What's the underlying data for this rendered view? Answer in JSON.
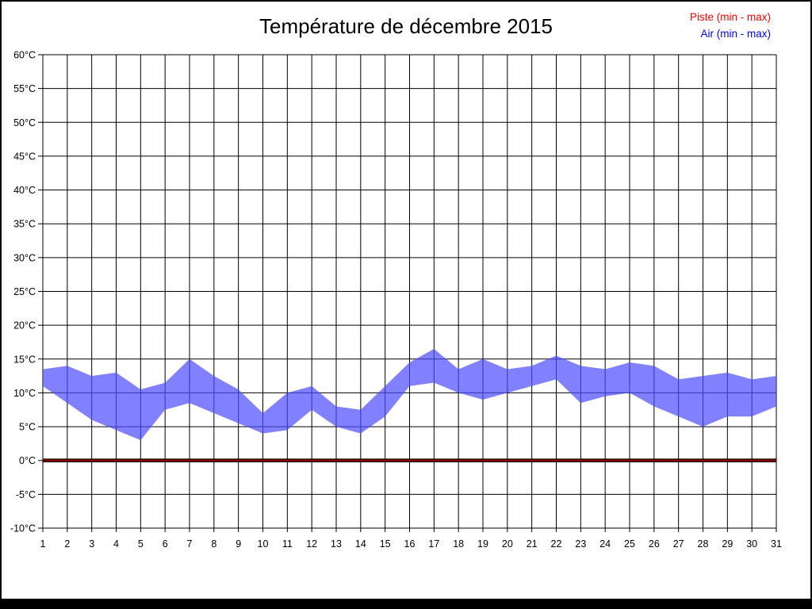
{
  "title": "Température de décembre 2015",
  "legend": [
    {
      "label": "Piste (min - max)",
      "color": "#ff0000"
    },
    {
      "label": "Air (min - max)",
      "color": "#0000ff"
    }
  ],
  "chart_data": {
    "type": "area",
    "subtype": "min-max-band",
    "title": "Température de décembre 2015",
    "xlabel": "",
    "ylabel": "",
    "x": [
      1,
      2,
      3,
      4,
      5,
      6,
      7,
      8,
      9,
      10,
      11,
      12,
      13,
      14,
      15,
      16,
      17,
      18,
      19,
      20,
      21,
      22,
      23,
      24,
      25,
      26,
      27,
      28,
      29,
      30,
      31
    ],
    "xtick_labels": [
      "1",
      "2",
      "3",
      "4",
      "5",
      "6",
      "7",
      "8",
      "9",
      "10",
      "11",
      "12",
      "13",
      "14",
      "15",
      "16",
      "17",
      "18",
      "19",
      "20",
      "21",
      "22",
      "23",
      "24",
      "25",
      "26",
      "27",
      "28",
      "29",
      "30",
      "31"
    ],
    "ylim": [
      -10,
      60
    ],
    "ytick_step": 5,
    "ytick_values": [
      -10,
      -5,
      0,
      5,
      10,
      15,
      20,
      25,
      30,
      35,
      40,
      45,
      50,
      55,
      60
    ],
    "ytick_suffix": "°C",
    "grid": true,
    "grid_color": "#000000",
    "legend_position": "top-right",
    "series": [
      {
        "name": "Piste (min - max)",
        "legend_color": "#ff0000",
        "line_color": "#8b0000",
        "min": [
          0,
          0,
          0,
          0,
          0,
          0,
          0,
          0,
          0,
          0,
          0,
          0,
          0,
          0,
          0,
          0,
          0,
          0,
          0,
          0,
          0,
          0,
          0,
          0,
          0,
          0,
          0,
          0,
          0,
          0,
          0
        ],
        "max": [
          0,
          0,
          0,
          0,
          0,
          0,
          0,
          0,
          0,
          0,
          0,
          0,
          0,
          0,
          0,
          0,
          0,
          0,
          0,
          0,
          0,
          0,
          0,
          0,
          0,
          0,
          0,
          0,
          0,
          0,
          0
        ]
      },
      {
        "name": "Air (min - max)",
        "legend_color": "#0000ff",
        "band_color": "rgba(75,75,255,0.70)",
        "min": [
          11,
          8.5,
          6,
          4.5,
          3,
          7.5,
          8.5,
          7,
          5.5,
          4,
          4.5,
          7.5,
          5,
          4,
          6.5,
          11,
          11.5,
          10,
          9,
          10,
          11,
          12,
          8.5,
          9.5,
          10,
          8,
          6.5,
          5,
          6.5,
          6.5,
          8
        ],
        "max": [
          13.5,
          14,
          12.5,
          13,
          10.5,
          11.5,
          15,
          12.5,
          10.5,
          7,
          10,
          11,
          8,
          7.5,
          11,
          14.5,
          16.5,
          13.5,
          15,
          13.5,
          14,
          15.5,
          14,
          13.5,
          14.5,
          14,
          12,
          12.5,
          13,
          12,
          12.5
        ]
      }
    ]
  }
}
